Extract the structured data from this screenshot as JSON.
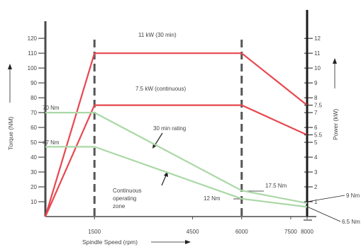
{
  "chart_data": {
    "type": "line",
    "xlabel": "Spindle Speed (rpm)",
    "ylabel_left": "Torque (NM)",
    "ylabel_right": "Power (kW)",
    "x_ticks": [
      {
        "value": 1500,
        "label": "1500"
      },
      {
        "value": 4500,
        "label": "4500"
      },
      {
        "value": 6000,
        "label": "6000"
      },
      {
        "value": 7500,
        "label": "7500"
      },
      {
        "value": 8000,
        "label": "8000"
      }
    ],
    "y_left_ticks": [
      {
        "value": 10,
        "label": "10"
      },
      {
        "value": 20,
        "label": "20"
      },
      {
        "value": 30,
        "label": "30"
      },
      {
        "value": 40,
        "label": "40"
      },
      {
        "value": 50,
        "label": "50"
      },
      {
        "value": 60,
        "label": "60"
      },
      {
        "value": 70,
        "label": "70"
      },
      {
        "value": 80,
        "label": "80"
      },
      {
        "value": 90,
        "label": "90"
      },
      {
        "value": 100,
        "label": "100"
      },
      {
        "value": 110,
        "label": "110"
      },
      {
        "value": 120,
        "label": "120"
      }
    ],
    "y_right_ticks": [
      {
        "value": 1,
        "label": "1"
      },
      {
        "value": 2,
        "label": "2"
      },
      {
        "value": 3,
        "label": "3"
      },
      {
        "value": 4,
        "label": "4"
      },
      {
        "value": 5,
        "label": "5"
      },
      {
        "value": 5.5,
        "label": "5.5"
      },
      {
        "value": 6,
        "label": "6"
      },
      {
        "value": 7,
        "label": "7"
      },
      {
        "value": 7.5,
        "label": "7.5"
      },
      {
        "value": 8,
        "label": "8"
      },
      {
        "value": 9,
        "label": "9"
      },
      {
        "value": 10,
        "label": "10"
      },
      {
        "value": 11,
        "label": "11"
      },
      {
        "value": 12,
        "label": "12"
      }
    ],
    "xlim": [
      0,
      8000
    ],
    "ylim_left": [
      0,
      130
    ],
    "ylim_right": [
      0,
      13
    ],
    "series": [
      {
        "axis": "right",
        "color": "#e8474f",
        "x": [
          0,
          1500,
          6000,
          8000
        ],
        "y": [
          0,
          11,
          11,
          7.5
        ]
      },
      {
        "axis": "right",
        "color": "#e8474f",
        "x": [
          0,
          1500,
          6000,
          8000
        ],
        "y": [
          0,
          7.5,
          7.5,
          5.5
        ]
      },
      {
        "axis": "left",
        "color": "#aad8a6",
        "x": [
          0,
          1500,
          6000,
          8000
        ],
        "y": [
          70,
          70,
          17.5,
          9
        ]
      },
      {
        "axis": "left",
        "color": "#aad8a6",
        "x": [
          0,
          1500,
          6000,
          8000
        ],
        "y": [
          47,
          47,
          12,
          6.5
        ]
      }
    ],
    "vlines": [
      1500,
      6000
    ],
    "annotations": {
      "p11": "11 kW (30 min)",
      "p75": "7.5 kW (continuous)",
      "rating30": "30 min rating",
      "zone1": "Continuous",
      "zone2": "operating",
      "zone3": "zone",
      "t70": "70 Nm",
      "t47": "47 Nm",
      "t175": "17.5 Nm",
      "t12": "12 Nm",
      "t9": "9 Nm",
      "t65": "6.5 Nm"
    }
  }
}
